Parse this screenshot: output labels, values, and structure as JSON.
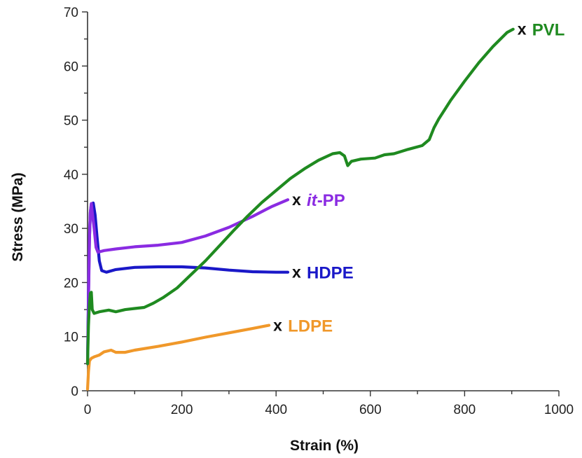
{
  "chart_data": {
    "type": "line",
    "title": "",
    "xlabel": "Strain (%)",
    "ylabel": "Stress (MPa)",
    "xlim": [
      0,
      1000
    ],
    "ylim": [
      0,
      70
    ],
    "x_ticks": [
      0,
      200,
      400,
      600,
      800,
      1000
    ],
    "y_ticks": [
      0,
      10,
      20,
      30,
      40,
      50,
      60,
      70
    ],
    "x_minor_step": 100,
    "y_minor_step": 5,
    "grid": false,
    "legend": "inline labels at series ends",
    "end_marker_text": "x",
    "series": [
      {
        "name": "PVL",
        "label_parts": [
          {
            "text": "PVL",
            "italic": false
          }
        ],
        "color": "#1f8a20",
        "points": [
          [
            0,
            5
          ],
          [
            2,
            12
          ],
          [
            4,
            16
          ],
          [
            6,
            18
          ],
          [
            8,
            18.2
          ],
          [
            10,
            15
          ],
          [
            14,
            14.3
          ],
          [
            25,
            14.6
          ],
          [
            45,
            14.9
          ],
          [
            60,
            14.6
          ],
          [
            80,
            15
          ],
          [
            100,
            15.2
          ],
          [
            120,
            15.4
          ],
          [
            140,
            16.2
          ],
          [
            160,
            17.2
          ],
          [
            190,
            19
          ],
          [
            220,
            21.5
          ],
          [
            250,
            24
          ],
          [
            280,
            26.8
          ],
          [
            310,
            29.6
          ],
          [
            340,
            32.3
          ],
          [
            370,
            34.8
          ],
          [
            400,
            37
          ],
          [
            430,
            39.2
          ],
          [
            460,
            41
          ],
          [
            490,
            42.6
          ],
          [
            520,
            43.8
          ],
          [
            535,
            44
          ],
          [
            545,
            43.4
          ],
          [
            552,
            41.6
          ],
          [
            560,
            42.4
          ],
          [
            580,
            42.8
          ],
          [
            610,
            43
          ],
          [
            630,
            43.6
          ],
          [
            650,
            43.8
          ],
          [
            680,
            44.6
          ],
          [
            710,
            45.3
          ],
          [
            725,
            46.4
          ],
          [
            735,
            48.6
          ],
          [
            745,
            50.2
          ],
          [
            770,
            53.6
          ],
          [
            800,
            57.2
          ],
          [
            830,
            60.6
          ],
          [
            860,
            63.6
          ],
          [
            890,
            66.2
          ],
          [
            903,
            66.8
          ]
        ],
        "end": [
          903,
          66.8
        ]
      },
      {
        "name": "it-PP",
        "label_parts": [
          {
            "text": "it",
            "italic": true
          },
          {
            "text": "-PP",
            "italic": false
          }
        ],
        "color": "#8a2be2",
        "points": [
          [
            0,
            5
          ],
          [
            2,
            16
          ],
          [
            4,
            28
          ],
          [
            6,
            33
          ],
          [
            8,
            34.6
          ],
          [
            10,
            33
          ],
          [
            14,
            30
          ],
          [
            18,
            26.5
          ],
          [
            22,
            25.6
          ],
          [
            35,
            25.9
          ],
          [
            60,
            26.2
          ],
          [
            100,
            26.6
          ],
          [
            150,
            26.9
          ],
          [
            200,
            27.4
          ],
          [
            250,
            28.6
          ],
          [
            300,
            30.2
          ],
          [
            350,
            32.2
          ],
          [
            390,
            34
          ],
          [
            425,
            35.3
          ]
        ],
        "end": [
          425,
          35.3
        ]
      },
      {
        "name": "HDPE",
        "label_parts": [
          {
            "text": "HDPE",
            "italic": false
          }
        ],
        "color": "#1a18c8",
        "points": [
          [
            0,
            5
          ],
          [
            2,
            18
          ],
          [
            4,
            28
          ],
          [
            6,
            33
          ],
          [
            8,
            34.4
          ],
          [
            12,
            34.7
          ],
          [
            16,
            32.5
          ],
          [
            20,
            28.5
          ],
          [
            25,
            24
          ],
          [
            30,
            22.2
          ],
          [
            40,
            21.9
          ],
          [
            60,
            22.4
          ],
          [
            100,
            22.8
          ],
          [
            150,
            22.9
          ],
          [
            200,
            22.9
          ],
          [
            250,
            22.7
          ],
          [
            300,
            22.3
          ],
          [
            350,
            22
          ],
          [
            400,
            21.9
          ],
          [
            425,
            21.9
          ]
        ],
        "end": [
          425,
          21.9
        ]
      },
      {
        "name": "LDPE",
        "label_parts": [
          {
            "text": "LDPE",
            "italic": false
          }
        ],
        "color": "#f0982a",
        "points": [
          [
            0,
            0.3
          ],
          [
            2,
            3.5
          ],
          [
            4,
            5.5
          ],
          [
            8,
            6
          ],
          [
            15,
            6.3
          ],
          [
            25,
            6.6
          ],
          [
            35,
            7.2
          ],
          [
            50,
            7.5
          ],
          [
            60,
            7.1
          ],
          [
            80,
            7.1
          ],
          [
            100,
            7.5
          ],
          [
            150,
            8.2
          ],
          [
            200,
            9
          ],
          [
            250,
            9.9
          ],
          [
            300,
            10.7
          ],
          [
            350,
            11.5
          ],
          [
            385,
            12.1
          ]
        ],
        "end": [
          385,
          12.1
        ]
      }
    ]
  }
}
